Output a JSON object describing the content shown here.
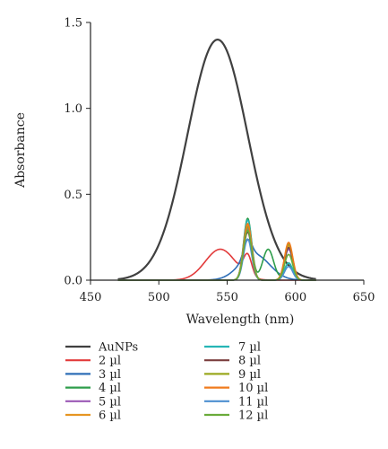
{
  "chart_data": {
    "type": "line",
    "xlabel": "Wavelength (nm)",
    "ylabel": "Absorbance",
    "xlim": [
      450,
      650
    ],
    "ylim": [
      0,
      1.5
    ],
    "xticks": [
      "450",
      "500",
      "550",
      "600",
      "650"
    ],
    "yticks": [
      "0.0",
      "0.5",
      "1.0",
      "1.5"
    ],
    "grid": false,
    "legend_position": "bottom",
    "series": [
      {
        "name": "AuNPs",
        "color": "#404040",
        "peaks": [
          {
            "center": 543,
            "height": 1.4,
            "sigma": 22
          }
        ]
      },
      {
        "name": "2 µl",
        "color": "#e23b3b",
        "peaks": [
          {
            "center": 545,
            "height": 0.18,
            "sigma": 11
          },
          {
            "center": 565,
            "height": 0.12,
            "sigma": 3
          }
        ]
      },
      {
        "name": "3 µl",
        "color": "#2f6fb7",
        "peaks": [
          {
            "center": 570,
            "height": 0.15,
            "sigma": 11
          },
          {
            "center": 565,
            "height": 0.1,
            "sigma": 3
          }
        ]
      },
      {
        "name": "4 µl",
        "color": "#2e9d4b",
        "peaks": [
          {
            "center": 565,
            "height": 0.36,
            "sigma": 3
          },
          {
            "center": 580,
            "height": 0.18,
            "sigma": 4
          },
          {
            "center": 595,
            "height": 0.1,
            "sigma": 3
          }
        ]
      },
      {
        "name": "5 µl",
        "color": "#9b59b6",
        "peaks": [
          {
            "center": 565,
            "height": 0.3,
            "sigma": 3
          },
          {
            "center": 595,
            "height": 0.18,
            "sigma": 3
          }
        ]
      },
      {
        "name": "6 µl",
        "color": "#e69522",
        "peaks": [
          {
            "center": 565,
            "height": 0.32,
            "sigma": 3
          },
          {
            "center": 595,
            "height": 0.2,
            "sigma": 3
          }
        ]
      },
      {
        "name": "7 µl",
        "color": "#26b5b5",
        "peaks": [
          {
            "center": 565,
            "height": 0.35,
            "sigma": 3
          },
          {
            "center": 595,
            "height": 0.1,
            "sigma": 3
          }
        ]
      },
      {
        "name": "8 µl",
        "color": "#7b3f3f",
        "peaks": [
          {
            "center": 565,
            "height": 0.28,
            "sigma": 3
          },
          {
            "center": 595,
            "height": 0.19,
            "sigma": 3
          }
        ]
      },
      {
        "name": "9 µl",
        "color": "#9aa81f",
        "peaks": [
          {
            "center": 565,
            "height": 0.31,
            "sigma": 3
          },
          {
            "center": 595,
            "height": 0.21,
            "sigma": 3
          }
        ]
      },
      {
        "name": "10 µl",
        "color": "#f07b1d",
        "peaks": [
          {
            "center": 565,
            "height": 0.33,
            "sigma": 3
          },
          {
            "center": 595,
            "height": 0.22,
            "sigma": 3
          }
        ]
      },
      {
        "name": "11 µl",
        "color": "#4d8fd0",
        "peaks": [
          {
            "center": 565,
            "height": 0.24,
            "sigma": 3
          },
          {
            "center": 595,
            "height": 0.08,
            "sigma": 3
          }
        ]
      },
      {
        "name": "12 µl",
        "color": "#6aab3a",
        "peaks": [
          {
            "center": 565,
            "height": 0.29,
            "sigma": 3
          },
          {
            "center": 595,
            "height": 0.15,
            "sigma": 3
          }
        ]
      }
    ]
  }
}
